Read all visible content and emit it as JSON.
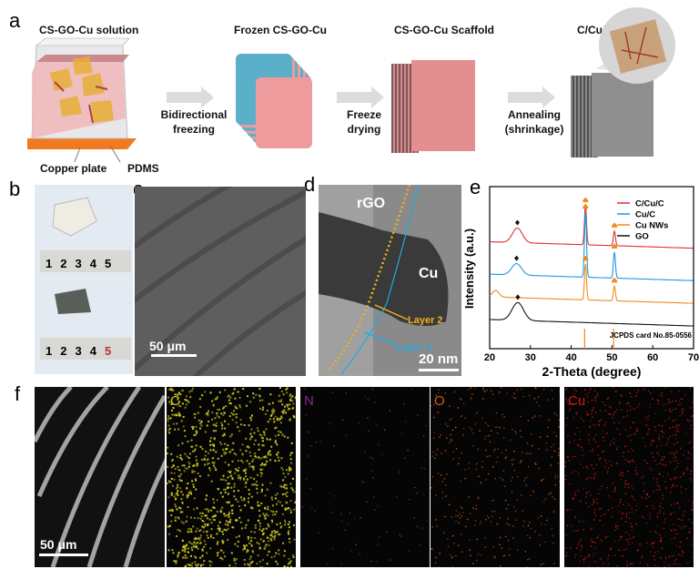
{
  "panel_labels": {
    "a": "a",
    "b": "b",
    "c": "c",
    "d": "d",
    "e": "e",
    "f": "f"
  },
  "panel_a": {
    "titles": [
      "CS-GO-Cu solution",
      "Frozen CS-GO-Cu",
      "CS-GO-Cu Scaffold",
      "C/Cu/C"
    ],
    "steps": [
      {
        "l1": "Bidirectional",
        "l2": "freezing"
      },
      {
        "l1": "Freeze",
        "l2": "drying"
      },
      {
        "l1": "Annealing",
        "l2": "(shrinkage)"
      }
    ],
    "callouts": {
      "copper": "Copper plate",
      "pdms": "PDMS"
    }
  },
  "panel_b": {
    "ruler_ticks": [
      "1",
      "2",
      "3",
      "4",
      "5"
    ]
  },
  "panel_c": {
    "scale": "50 μm"
  },
  "panel_d": {
    "rgo": "rGO",
    "cu": "Cu",
    "layer2": "Layer 2",
    "layer1": "Layer 1",
    "scale": "20 nm"
  },
  "panel_f": {
    "labels": [
      "C",
      "N",
      "O",
      "Cu"
    ],
    "colors": [
      "#d8d020",
      "#8a2a8a",
      "#d05a10",
      "#d01a10"
    ],
    "scale": "50 μm"
  },
  "chart_data": {
    "type": "line",
    "xlabel": "2-Theta (degree)",
    "ylabel": "Intensity (a.u.)",
    "xlim": [
      20,
      70
    ],
    "xticks": [
      "20",
      "30",
      "40",
      "50",
      "60",
      "70"
    ],
    "legend_position": "top-right",
    "reference_label": "JCPDS card No.85-0556",
    "reference_peaks": [
      43.3,
      50.4
    ],
    "series": [
      {
        "name": "C/Cu/C",
        "color": "#e0302f",
        "offset": 3.3,
        "peaks": [
          [
            26.8,
            0.45,
            1.2
          ],
          [
            43.5,
            1.2,
            0.25
          ],
          [
            50.6,
            0.45,
            0.25
          ]
        ],
        "markers": [
          [
            "diamond",
            26.8
          ],
          [
            "cu",
            43.5
          ],
          [
            "cu",
            50.6
          ]
        ]
      },
      {
        "name": "Cu/C",
        "color": "#1a9ce0",
        "offset": 2.3,
        "peaks": [
          [
            26.6,
            0.35,
            1.2
          ],
          [
            43.5,
            2.0,
            0.25
          ],
          [
            50.6,
            0.8,
            0.25
          ]
        ],
        "markers": [
          [
            "diamond",
            26.6
          ],
          [
            "cu",
            43.5
          ],
          [
            "cu",
            50.6
          ]
        ]
      },
      {
        "name": "Cu NWs",
        "color": "#f08a20",
        "offset": 1.6,
        "peaks": [
          [
            21.5,
            0.2,
            0.8
          ],
          [
            43.5,
            1.1,
            0.25
          ],
          [
            50.6,
            0.45,
            0.25
          ]
        ],
        "markers": [
          [
            "cu",
            43.5
          ],
          [
            "cu",
            50.6
          ]
        ]
      },
      {
        "name": "GO",
        "color": "#111111",
        "offset": 0.9,
        "peaks": [
          [
            26.9,
            0.55,
            1.4
          ]
        ],
        "markers": [
          [
            "diamond",
            26.9
          ]
        ]
      }
    ]
  }
}
